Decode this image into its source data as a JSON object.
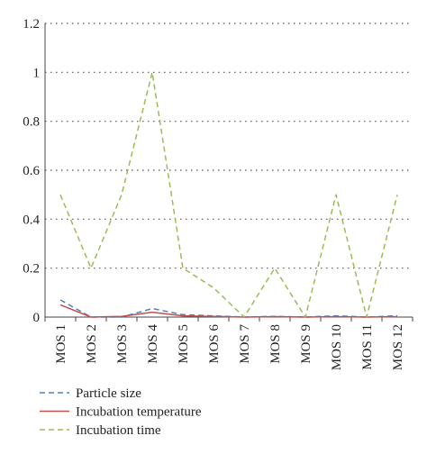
{
  "chart_data": {
    "type": "line",
    "categories": [
      "MOS 1",
      "MOS 2",
      "MOS 3",
      "MOS 4",
      "MOS 5",
      "MOS 6",
      "MOS 7",
      "MOS 8",
      "MOS 9",
      "MOS 10",
      "MOS 11",
      "MOS 12"
    ],
    "series": [
      {
        "name": "Particle size",
        "color": "#4f81bd",
        "style": "dashed",
        "values": [
          0.07,
          0.0,
          0.0,
          0.035,
          0.01,
          0.005,
          0.0,
          0.003,
          0.0,
          0.005,
          0.0,
          0.005
        ]
      },
      {
        "name": "Incubation temperature",
        "color": "#c0504d",
        "style": "solid",
        "values": [
          0.05,
          0.0,
          0.003,
          0.02,
          0.005,
          0.003,
          0.0,
          0.002,
          0.0,
          0.002,
          0.0,
          0.002
        ]
      },
      {
        "name": "Incubation time",
        "color": "#9bbb59",
        "style": "dashed",
        "values": [
          0.5,
          0.2,
          0.5,
          1.0,
          0.2,
          0.12,
          0.0,
          0.2,
          0.0,
          0.5,
          0.0,
          0.5
        ]
      }
    ],
    "ylim": [
      0,
      1.2
    ],
    "yticks": [
      "0",
      "0.2",
      "0.4",
      "0.6",
      "0.8",
      "1",
      "1.2"
    ],
    "grid": "horizontal-dotted",
    "legend_position": "bottom-left",
    "title": "",
    "xlabel": "",
    "ylabel": ""
  }
}
